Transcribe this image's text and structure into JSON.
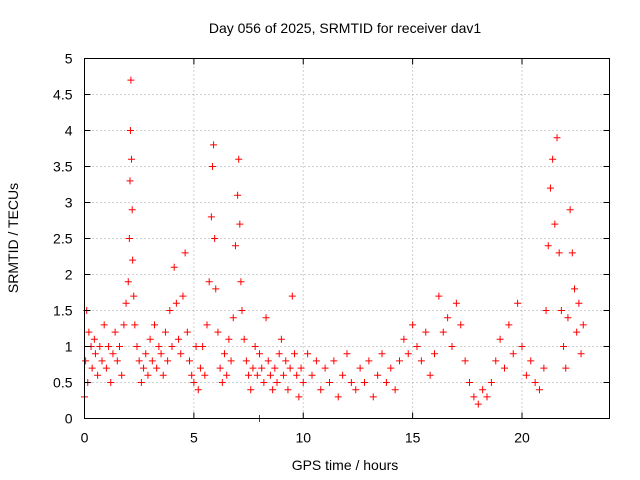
{
  "chart_data": {
    "type": "scatter",
    "title": "Day 056 of 2025, SRMTID for receiver dav1",
    "xlabel": "GPS time / hours",
    "ylabel": "SRMTID / TECUs",
    "xlim": [
      0,
      24
    ],
    "ylim": [
      0,
      5
    ],
    "x_ticks": [
      "0",
      "5",
      "10",
      "15",
      "20"
    ],
    "x_tick_values": [
      0,
      5,
      10,
      15,
      20
    ],
    "y_ticks": [
      "0",
      "0.5",
      "1",
      "1.5",
      "2",
      "2.5",
      "3",
      "3.5",
      "4",
      "4.5",
      "5"
    ],
    "y_tick_values": [
      0,
      0.5,
      1,
      1.5,
      2,
      2.5,
      3,
      3.5,
      4,
      4.5,
      5
    ],
    "grid": true,
    "marker": "+",
    "series": [
      {
        "name": "SRMTID",
        "color": "#ff0000",
        "x": [
          0.0,
          0.05,
          0.1,
          0.15,
          0.2,
          0.3,
          0.35,
          0.45,
          0.5,
          0.6,
          0.7,
          0.8,
          0.9,
          1.0,
          1.1,
          1.2,
          1.3,
          1.4,
          1.5,
          1.6,
          1.7,
          1.8,
          1.9,
          2.0,
          2.05,
          2.08,
          2.1,
          2.12,
          2.15,
          2.18,
          2.2,
          2.25,
          2.3,
          2.4,
          2.5,
          2.6,
          2.7,
          2.8,
          2.9,
          3.0,
          3.1,
          3.2,
          3.3,
          3.4,
          3.5,
          3.6,
          3.7,
          3.8,
          3.9,
          4.0,
          4.1,
          4.2,
          4.3,
          4.4,
          4.5,
          4.6,
          4.7,
          4.8,
          4.9,
          5.0,
          5.1,
          5.2,
          5.3,
          5.4,
          5.5,
          5.6,
          5.7,
          5.8,
          5.85,
          5.9,
          5.95,
          6.0,
          6.1,
          6.2,
          6.3,
          6.4,
          6.5,
          6.6,
          6.7,
          6.8,
          6.9,
          7.0,
          7.05,
          7.1,
          7.15,
          7.2,
          7.3,
          7.4,
          7.5,
          7.6,
          7.7,
          7.8,
          7.9,
          8.0,
          8.1,
          8.2,
          8.3,
          8.4,
          8.5,
          8.6,
          8.7,
          8.8,
          8.9,
          9.0,
          9.1,
          9.2,
          9.3,
          9.4,
          9.5,
          9.6,
          9.7,
          9.8,
          9.9,
          10.0,
          10.2,
          10.4,
          10.6,
          10.8,
          11.0,
          11.2,
          11.4,
          11.6,
          11.8,
          12.0,
          12.2,
          12.4,
          12.6,
          12.8,
          13.0,
          13.2,
          13.4,
          13.6,
          13.8,
          14.0,
          14.2,
          14.4,
          14.6,
          14.8,
          15.0,
          15.2,
          15.4,
          15.6,
          15.8,
          16.0,
          16.2,
          16.4,
          16.6,
          16.8,
          17.0,
          17.2,
          17.4,
          17.6,
          17.8,
          18.0,
          18.2,
          18.4,
          18.6,
          18.8,
          19.0,
          19.2,
          19.4,
          19.6,
          19.8,
          20.0,
          20.2,
          20.4,
          20.6,
          20.8,
          21.0,
          21.1,
          21.2,
          21.3,
          21.4,
          21.5,
          21.6,
          21.7,
          21.8,
          21.9,
          22.0,
          22.1,
          22.2,
          22.3,
          22.4,
          22.5,
          22.6,
          22.7,
          22.8,
          8.0
        ],
        "y": [
          0.3,
          0.8,
          1.5,
          0.5,
          1.2,
          1.0,
          0.7,
          1.1,
          0.9,
          0.6,
          1.0,
          0.8,
          1.3,
          0.7,
          1.0,
          0.5,
          0.9,
          1.2,
          0.8,
          1.0,
          0.6,
          1.3,
          1.6,
          1.9,
          2.5,
          3.3,
          4.0,
          4.7,
          3.6,
          2.9,
          2.2,
          1.7,
          1.3,
          1.0,
          0.8,
          0.5,
          0.7,
          0.9,
          0.6,
          1.1,
          0.8,
          1.3,
          0.7,
          1.0,
          0.9,
          0.6,
          1.2,
          0.8,
          1.5,
          1.0,
          2.1,
          1.6,
          1.1,
          0.9,
          1.7,
          2.3,
          1.2,
          0.8,
          0.6,
          0.5,
          1.0,
          0.4,
          0.7,
          1.0,
          0.6,
          1.3,
          1.9,
          2.8,
          3.5,
          3.8,
          2.5,
          1.8,
          1.2,
          0.7,
          0.5,
          0.9,
          0.6,
          1.1,
          0.8,
          1.4,
          2.4,
          3.1,
          3.6,
          2.7,
          1.9,
          1.5,
          1.1,
          0.8,
          0.6,
          0.4,
          0.7,
          1.0,
          0.6,
          0.9,
          0.7,
          0.5,
          1.4,
          0.8,
          0.6,
          0.4,
          0.7,
          0.5,
          0.9,
          1.1,
          0.6,
          0.8,
          0.4,
          0.7,
          1.7,
          0.9,
          0.6,
          0.3,
          0.7,
          0.5,
          0.9,
          0.6,
          0.8,
          0.4,
          0.7,
          0.5,
          0.8,
          0.3,
          0.6,
          0.9,
          0.5,
          0.4,
          0.7,
          0.5,
          0.8,
          0.3,
          0.6,
          0.9,
          0.5,
          0.7,
          0.4,
          0.8,
          1.1,
          0.9,
          1.3,
          1.0,
          0.8,
          1.2,
          0.6,
          0.9,
          1.7,
          1.2,
          1.4,
          1.0,
          1.6,
          1.3,
          0.8,
          0.5,
          0.3,
          0.2,
          0.4,
          0.3,
          0.5,
          0.8,
          1.1,
          0.7,
          1.3,
          0.9,
          1.6,
          1.0,
          0.6,
          0.8,
          0.5,
          0.4,
          0.7,
          1.5,
          2.4,
          3.2,
          3.6,
          2.7,
          3.9,
          2.3,
          1.5,
          1.0,
          0.7,
          1.4,
          2.9,
          2.3,
          1.8,
          1.2,
          1.6,
          0.9,
          1.3,
          0.0
        ]
      }
    ]
  }
}
